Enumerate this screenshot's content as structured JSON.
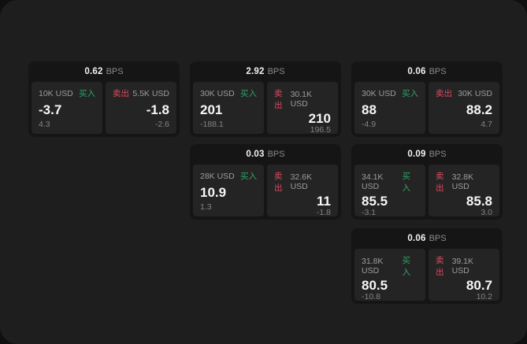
{
  "labels": {
    "bps_unit": "BPS",
    "buy": "买入",
    "sell": "卖出"
  },
  "colors": {
    "window_background": "#1e1e1e",
    "card_background": "#151515",
    "tile_background": "#242424",
    "buy_green": "#2fa364",
    "sell_red": "#e0485e"
  },
  "cards": [
    {
      "bps": "0.62",
      "buy": {
        "size": "10K USD",
        "price": "-3.7",
        "change": "4.3"
      },
      "sell": {
        "size": "5.5K USD",
        "price": "-1.8",
        "change": "-2.6"
      }
    },
    {
      "bps": "2.92",
      "buy": {
        "size": "30K USD",
        "price": "201",
        "change": "-188.1"
      },
      "sell": {
        "size": "30.1K USD",
        "price": "210",
        "change": "196.5"
      }
    },
    {
      "bps": "0.06",
      "buy": {
        "size": "30K USD",
        "price": "88",
        "change": "-4.9"
      },
      "sell": {
        "size": "30K USD",
        "price": "88.2",
        "change": "4.7"
      }
    },
    {
      "bps": "0.03",
      "buy": {
        "size": "28K USD",
        "price": "10.9",
        "change": "1.3"
      },
      "sell": {
        "size": "32.6K USD",
        "price": "11",
        "change": "-1.8"
      }
    },
    {
      "bps": "0.09",
      "buy": {
        "size": "34.1K USD",
        "price": "85.5",
        "change": "-3.1"
      },
      "sell": {
        "size": "32.8K USD",
        "price": "85.8",
        "change": "3.0"
      }
    },
    {
      "bps": "0.06",
      "buy": {
        "size": "31.8K USD",
        "price": "80.5",
        "change": "-10.8"
      },
      "sell": {
        "size": "39.1K USD",
        "price": "80.7",
        "change": "10.2"
      }
    }
  ]
}
